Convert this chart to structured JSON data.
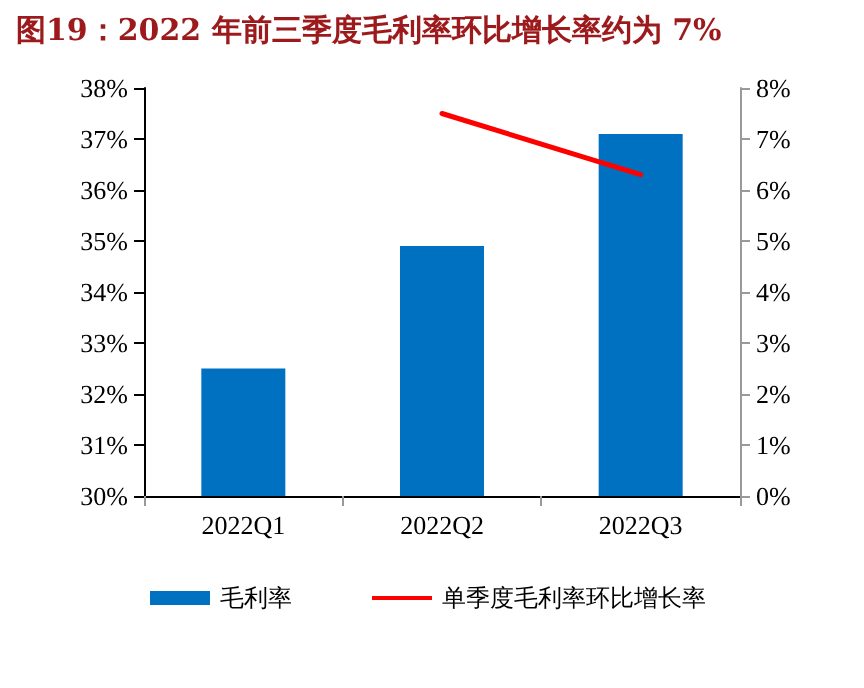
{
  "chart_data": {
    "type": "bar",
    "title": "图19：2022 年前三季度毛利率环比增长率约为 7%",
    "categories": [
      "2022Q1",
      "2022Q2",
      "2022Q3"
    ],
    "series": [
      {
        "name": "毛利率",
        "color": "#0070c0",
        "values": [
          32.5,
          34.9,
          37.1
        ]
      },
      {
        "name": "单季度毛利率环比增长率",
        "type": "line",
        "axis": "y2",
        "color": "#ff0000",
        "values": [
          null,
          7.5,
          6.3
        ]
      }
    ],
    "ylim": [
      30,
      38
    ],
    "yticks": [
      {
        "value": 30,
        "label": "30%"
      },
      {
        "value": 31,
        "label": "31%"
      },
      {
        "value": 32,
        "label": "32%"
      },
      {
        "value": 33,
        "label": "33%"
      },
      {
        "value": 34,
        "label": "34%"
      },
      {
        "value": 35,
        "label": "35%"
      },
      {
        "value": 36,
        "label": "36%"
      },
      {
        "value": 37,
        "label": "37%"
      },
      {
        "value": 38,
        "label": "38%"
      }
    ],
    "y2lim": [
      0,
      8
    ],
    "y2ticks": [
      {
        "value": 0,
        "label": "0%"
      },
      {
        "value": 1,
        "label": "1%"
      },
      {
        "value": 2,
        "label": "2%"
      },
      {
        "value": 3,
        "label": "3%"
      },
      {
        "value": 4,
        "label": "4%"
      },
      {
        "value": 5,
        "label": "5%"
      },
      {
        "value": 6,
        "label": "6%"
      },
      {
        "value": 7,
        "label": "7%"
      },
      {
        "value": 8,
        "label": "8%"
      }
    ],
    "legend": "bottom",
    "marker": "none"
  }
}
